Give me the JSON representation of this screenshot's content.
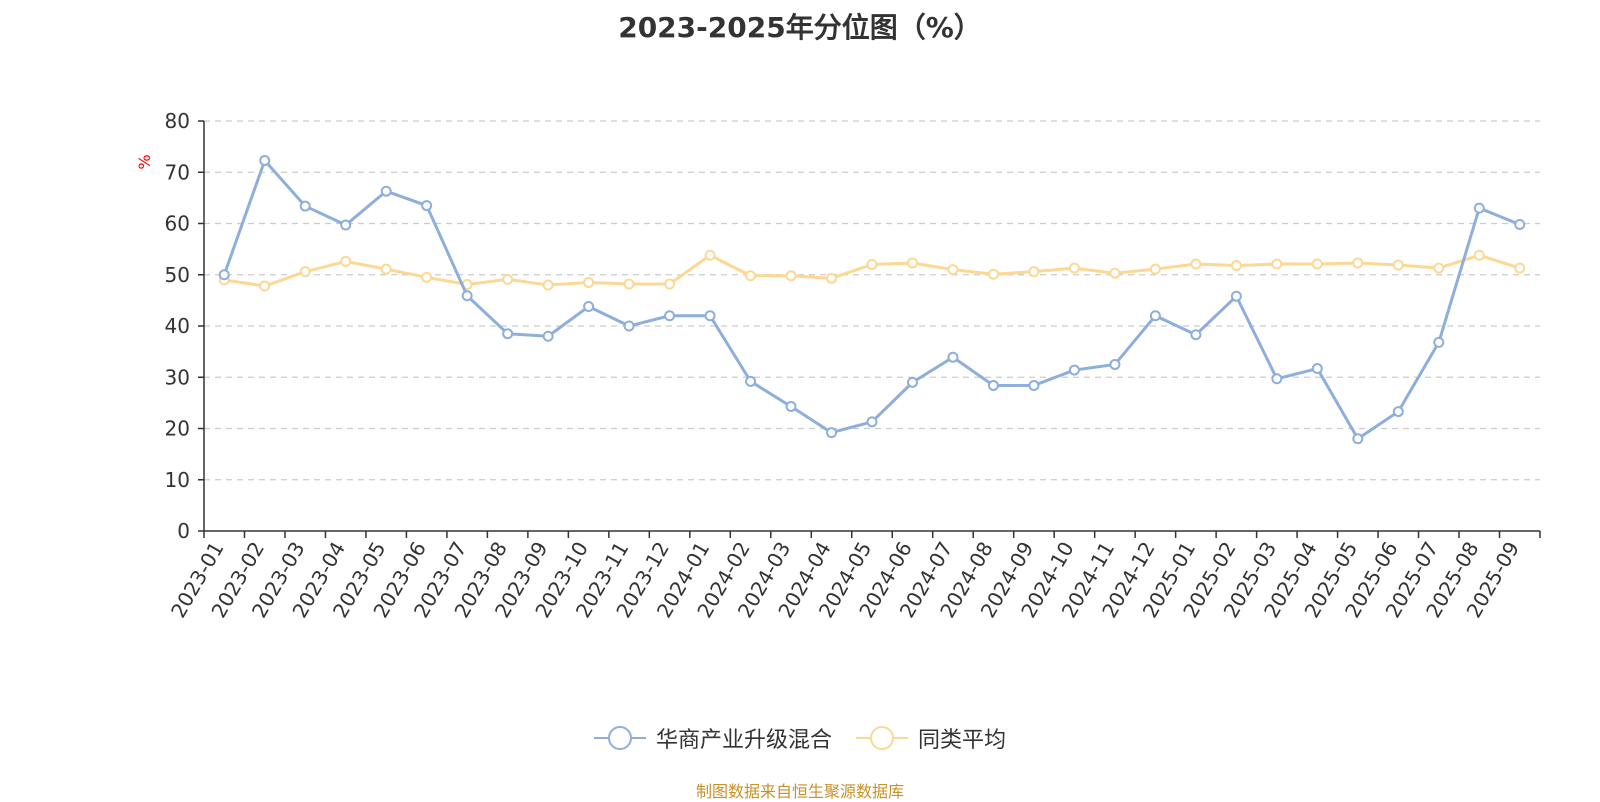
{
  "chart_data": {
    "type": "line",
    "title": "2023-2025年分位图（%）",
    "ylabel": "%",
    "ylim": [
      0,
      80
    ],
    "yticks": [
      0,
      10,
      20,
      30,
      40,
      50,
      60,
      70,
      80
    ],
    "grid": true,
    "legend_position": "bottom-center",
    "categories": [
      "2023-01",
      "2023-02",
      "2023-03",
      "2023-04",
      "2023-05",
      "2023-06",
      "2023-07",
      "2023-08",
      "2023-09",
      "2023-10",
      "2023-11",
      "2023-12",
      "2024-01",
      "2024-02",
      "2024-03",
      "2024-04",
      "2024-05",
      "2024-06",
      "2024-07",
      "2024-08",
      "2024-09",
      "2024-10",
      "2024-11",
      "2024-12",
      "2025-01",
      "2025-02",
      "2025-03",
      "2025-04",
      "2025-05",
      "2025-06",
      "2025-07",
      "2025-08",
      "2025-09"
    ],
    "series": [
      {
        "name": "华商产业升级混合",
        "color": "#8eaedb",
        "values": [
          50.0,
          72.3,
          63.4,
          59.7,
          66.3,
          63.5,
          45.9,
          38.5,
          38.0,
          43.8,
          40.0,
          42.0,
          42.0,
          29.2,
          24.3,
          19.2,
          21.3,
          29.0,
          33.9,
          28.4,
          28.4,
          31.4,
          32.5,
          42.0,
          38.3,
          45.8,
          29.7,
          31.7,
          18.0,
          23.3,
          36.8,
          63.0,
          59.8
        ]
      },
      {
        "name": "同类平均",
        "color": "#fcd894",
        "values": [
          49.0,
          47.8,
          50.6,
          52.6,
          51.1,
          49.5,
          48.1,
          49.1,
          48.0,
          48.5,
          48.2,
          48.2,
          53.8,
          49.8,
          49.8,
          49.3,
          52.0,
          52.3,
          51.0,
          50.1,
          50.6,
          51.3,
          50.3,
          51.1,
          52.1,
          51.8,
          52.1,
          52.1,
          52.3,
          51.9,
          51.3,
          53.8,
          51.3
        ]
      }
    ]
  },
  "footer": {
    "text": "制图数据来自恒生聚源数据库",
    "color": "#c8902a"
  },
  "colors": {
    "axis": "#333333",
    "grid": "#cccccc",
    "ylabel": "#ff0000"
  }
}
